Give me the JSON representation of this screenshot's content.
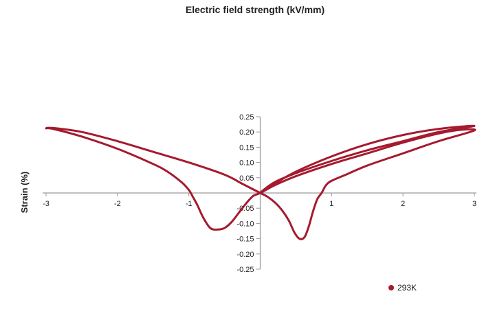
{
  "chart_data": {
    "type": "line",
    "title": "Electric field strength (kV/mm)",
    "xlabel": "Electric field strength (kV/mm)",
    "ylabel": "Strain (%)",
    "xlim": [
      -3,
      3
    ],
    "ylim": [
      -0.25,
      0.25
    ],
    "x_ticks": [
      -3,
      -2,
      -1,
      1,
      2,
      3
    ],
    "x_tick_labels": [
      "-3",
      "-2",
      "-1",
      "1",
      "2",
      "3"
    ],
    "y_ticks": [
      0.25,
      0.2,
      0.15,
      0.1,
      0.05,
      -0.05,
      -0.1,
      -0.15,
      -0.2,
      -0.25
    ],
    "y_tick_labels": [
      "0.25",
      "0.20",
      "0.15",
      "0.10",
      "0.05",
      "-0.05",
      "-0.10",
      "-0.15",
      "-0.20",
      "-0.25"
    ],
    "grid": false,
    "legend_position": "bottom-right",
    "series": [
      {
        "name": "293K",
        "color": "#A51A2E",
        "points": [
          [
            0,
            0
          ],
          [
            0.1,
            -0.012
          ],
          [
            0.2,
            -0.03
          ],
          [
            0.3,
            -0.055
          ],
          [
            0.4,
            -0.09
          ],
          [
            0.48,
            -0.13
          ],
          [
            0.55,
            -0.15
          ],
          [
            0.62,
            -0.145
          ],
          [
            0.68,
            -0.11
          ],
          [
            0.74,
            -0.06
          ],
          [
            0.8,
            -0.02
          ],
          [
            0.86,
            0.0
          ],
          [
            0.92,
            0.025
          ],
          [
            1.0,
            0.04
          ],
          [
            1.2,
            0.06
          ],
          [
            1.5,
            0.09
          ],
          [
            2.0,
            0.13
          ],
          [
            2.5,
            0.17
          ],
          [
            3.0,
            0.205
          ],
          [
            2.8,
            0.207
          ],
          [
            2.5,
            0.195
          ],
          [
            2.0,
            0.165
          ],
          [
            1.5,
            0.13
          ],
          [
            1.0,
            0.095
          ],
          [
            0.5,
            0.055
          ],
          [
            0.2,
            0.025
          ],
          [
            0,
            0
          ],
          [
            0.2,
            0.035
          ],
          [
            0.5,
            0.065
          ],
          [
            1.0,
            0.105
          ],
          [
            1.5,
            0.14
          ],
          [
            2.0,
            0.17
          ],
          [
            2.5,
            0.2
          ],
          [
            3.0,
            0.22
          ],
          [
            2.5,
            0.21
          ],
          [
            2.0,
            0.19
          ],
          [
            1.5,
            0.16
          ],
          [
            1.0,
            0.12
          ],
          [
            0.5,
            0.07
          ],
          [
            0.2,
            0.03
          ],
          [
            0,
            0
          ],
          [
            -0.1,
            -0.01
          ],
          [
            -0.2,
            -0.035
          ],
          [
            -0.3,
            -0.065
          ],
          [
            -0.4,
            -0.095
          ],
          [
            -0.5,
            -0.115
          ],
          [
            -0.6,
            -0.12
          ],
          [
            -0.7,
            -0.115
          ],
          [
            -0.8,
            -0.08
          ],
          [
            -0.88,
            -0.04
          ],
          [
            -0.95,
            -0.01
          ],
          [
            -1.0,
            0.01
          ],
          [
            -1.1,
            0.035
          ],
          [
            -1.3,
            0.07
          ],
          [
            -1.5,
            0.095
          ],
          [
            -2.0,
            0.145
          ],
          [
            -2.5,
            0.185
          ],
          [
            -2.9,
            0.21
          ],
          [
            -3.0,
            0.212
          ],
          [
            -2.9,
            0.213
          ],
          [
            -2.5,
            0.2
          ],
          [
            -2.0,
            0.17
          ],
          [
            -1.5,
            0.135
          ],
          [
            -1.0,
            0.1
          ],
          [
            -0.5,
            0.06
          ],
          [
            -0.25,
            0.03
          ],
          [
            0,
            0
          ]
        ]
      }
    ]
  },
  "legend": {
    "items": [
      {
        "label": "293K",
        "color": "#A51A2E"
      }
    ]
  },
  "axis_color": "#9a9a9a"
}
